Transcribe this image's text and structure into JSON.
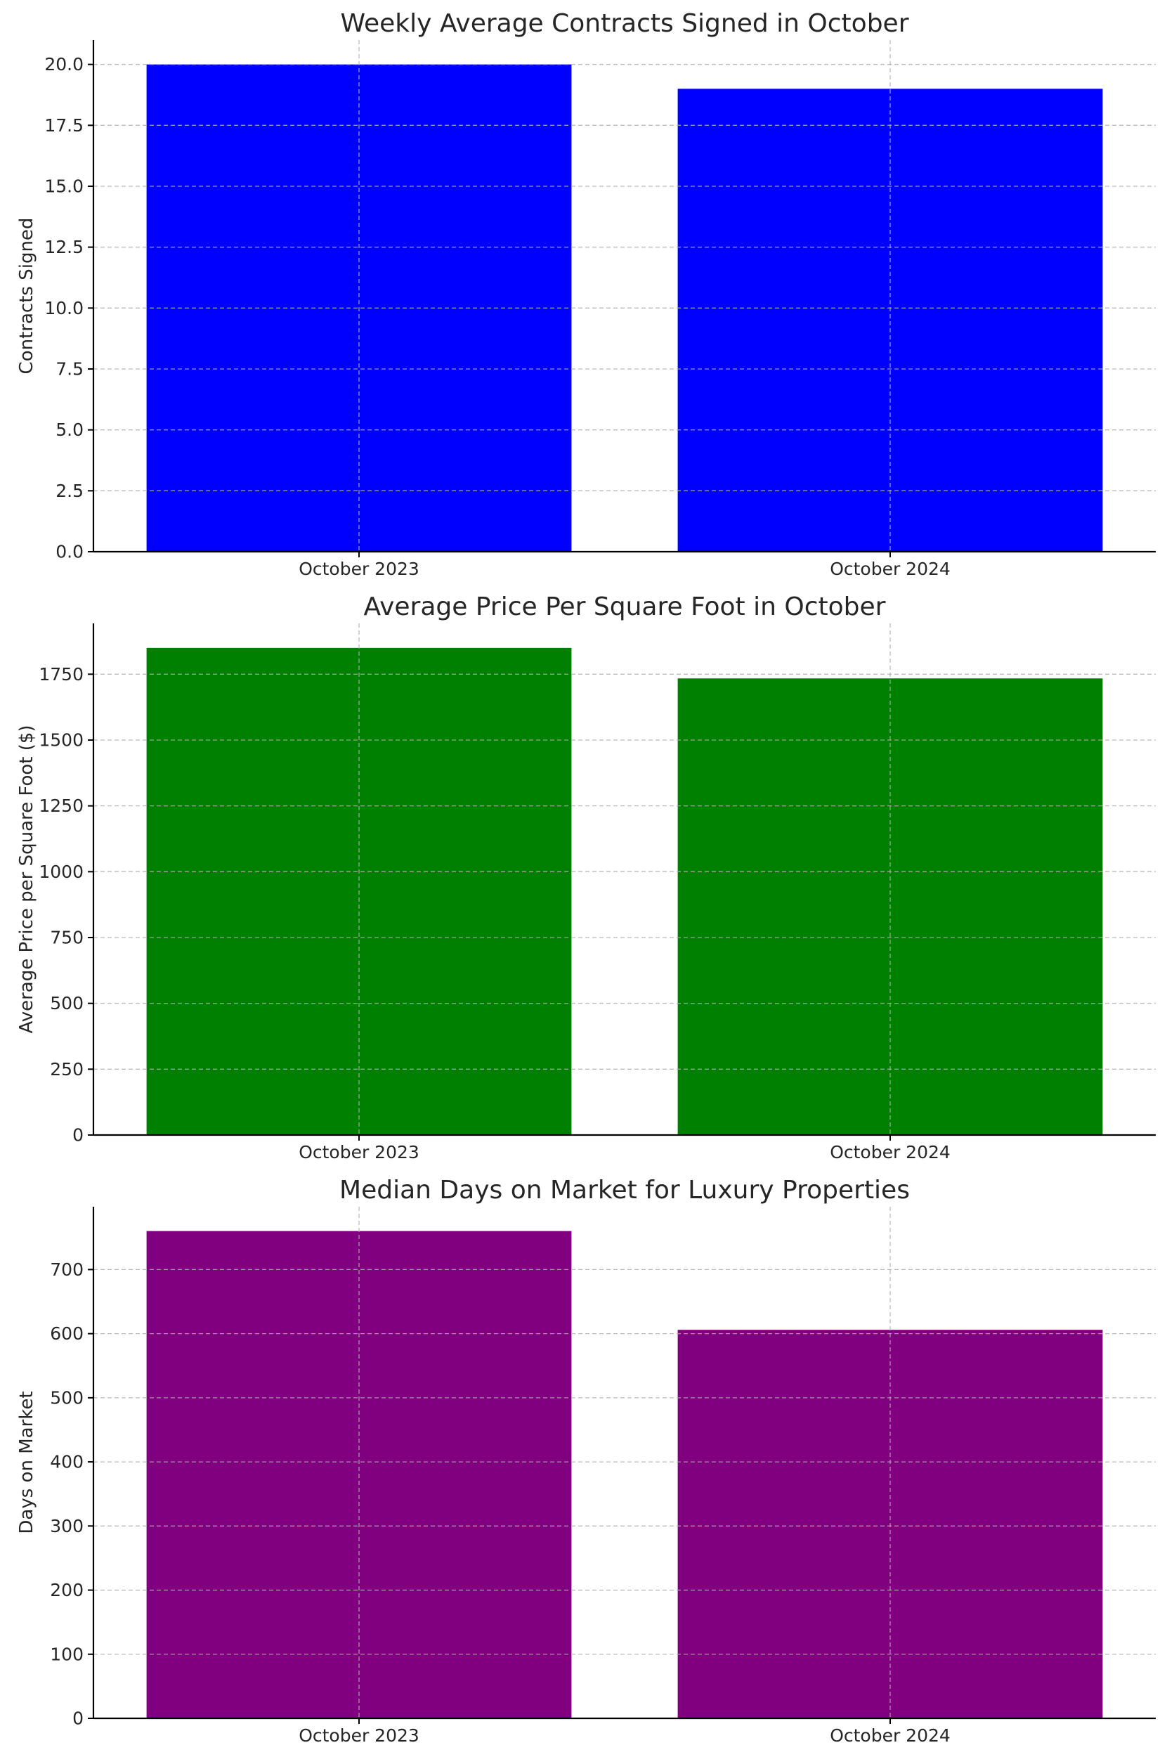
{
  "chart_data": [
    {
      "type": "bar",
      "title": "Weekly Average Contracts Signed in October",
      "xlabel": "",
      "ylabel": "Contracts Signed",
      "categories": [
        "October 2023",
        "October 2024"
      ],
      "values": [
        20,
        19
      ],
      "ylim": [
        0,
        21
      ],
      "yticks": [
        0,
        2.5,
        5,
        7.5,
        10,
        12.5,
        15,
        17.5,
        20
      ],
      "ytick_labels": [
        "0.0",
        "2.5",
        "5.0",
        "7.5",
        "10.0",
        "12.5",
        "15.0",
        "17.5",
        "20.0"
      ],
      "color": "#0000ff",
      "grid": true
    },
    {
      "type": "bar",
      "title": "Average Price Per Square Foot in October",
      "xlabel": "",
      "ylabel": "Average Price per Square Foot ($)",
      "categories": [
        "October 2023",
        "October 2024"
      ],
      "values": [
        1850,
        1734
      ],
      "ylim": [
        0,
        1943
      ],
      "yticks": [
        0,
        250,
        500,
        750,
        1000,
        1250,
        1500,
        1750
      ],
      "ytick_labels": [
        "0",
        "250",
        "500",
        "750",
        "1000",
        "1250",
        "1500",
        "1750"
      ],
      "color": "#008000",
      "grid": true
    },
    {
      "type": "bar",
      "title": "Median Days on Market for Luxury Properties",
      "xlabel": "",
      "ylabel": "Days on Market",
      "categories": [
        "October 2023",
        "October 2024"
      ],
      "values": [
        760,
        606
      ],
      "ylim": [
        0,
        798
      ],
      "yticks": [
        0,
        100,
        200,
        300,
        400,
        500,
        600,
        700
      ],
      "ytick_labels": [
        "0",
        "100",
        "200",
        "300",
        "400",
        "500",
        "600",
        "700"
      ],
      "color": "#800080",
      "grid": true
    }
  ]
}
